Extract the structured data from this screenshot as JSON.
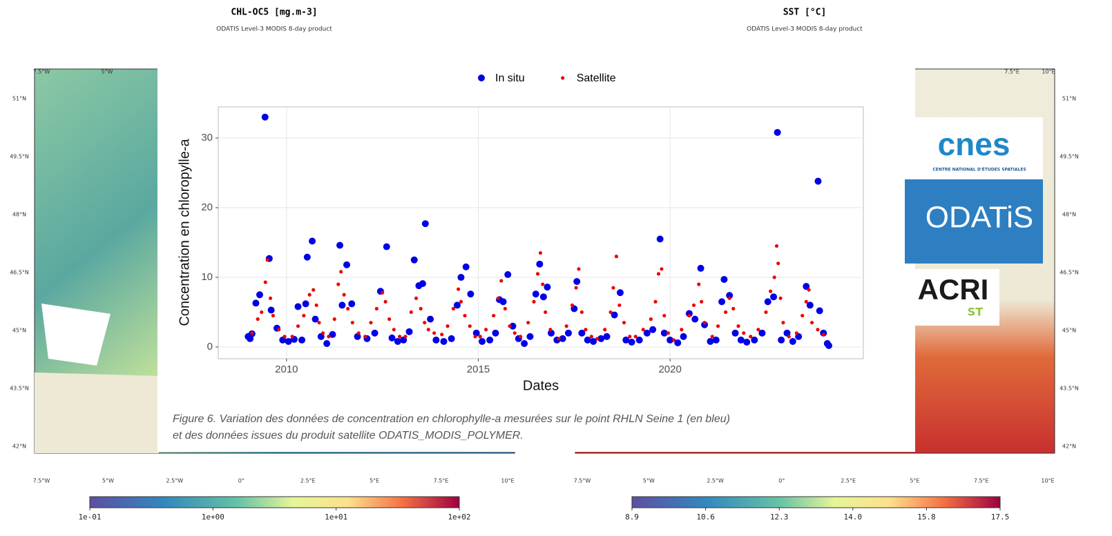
{
  "maps": [
    {
      "title": "CHL-OC5 [mg.m-3]",
      "subtitle": "ODATIS Level-3 MODIS 8-day product",
      "top_labels": [
        "7.5°W",
        "5°W"
      ],
      "lat_labels": [
        "51°N",
        "49.5°N",
        "48°N",
        "46.5°N",
        "45°N",
        "43.5°N",
        "42°N"
      ],
      "lon_labels": [
        "7.5°W",
        "5°W",
        "2.5°W",
        "0°",
        "2.5°E",
        "5°E",
        "7.5°E",
        "10°E"
      ],
      "colorbar_ticks": [
        "1e-01",
        "1e+00",
        "1e+01",
        "1e+02"
      ]
    },
    {
      "title": "SST [°C]",
      "subtitle": "ODATIS Level-3 MODIS 8-day product",
      "top_labels": [
        "7.5°E",
        "10°E"
      ],
      "lat_labels": [
        "51°N",
        "49.5°N",
        "48°N",
        "46.5°N",
        "45°N",
        "43.5°N",
        "42°N"
      ],
      "lon_labels": [
        "7.5°W",
        "5°W",
        "2.5°W",
        "0°",
        "2.5°E",
        "5°E",
        "7.5°E",
        "10°E"
      ],
      "colorbar_ticks": [
        "8.9",
        "10.6",
        "12.3",
        "14.0",
        "15.8",
        "17.5"
      ]
    }
  ],
  "logos": {
    "cnes": "cnes",
    "cnes_sub": "CENTRE NATIONAL D'ÉTUDES SPATIALES",
    "odatis": "ODATiS",
    "acri": "ACRI",
    "acri_sub": "ST"
  },
  "caption": [
    "Figure 6. Variation des données de concentration en chlorophylle-a mesurées sur le point RHLN Seine 1 (en bleu)",
    "et des données issues du produit satellite ODATIS_MODIS_POLYMER."
  ],
  "chart_data": {
    "type": "scatter",
    "x_label": "Dates",
    "y_label": "Concentration en chloropylle-a",
    "xlim": [
      2008.22,
      2025.04
    ],
    "ylim": [
      -1.68,
      34.46
    ],
    "xticks": [
      2010,
      2015,
      2020
    ],
    "yticks": [
      0,
      10,
      20,
      30
    ],
    "grid": true,
    "legend": "top",
    "series": [
      {
        "name": "In situ",
        "color": "#0000e6",
        "x": [
          2009.0,
          2009.05,
          2009.1,
          2009.2,
          2009.3,
          2009.44,
          2009.55,
          2009.6,
          2009.75,
          2009.9,
          2010.05,
          2010.2,
          2010.3,
          2010.4,
          2010.5,
          2010.54,
          2010.67,
          2010.75,
          2010.9,
          2011.05,
          2011.2,
          2011.39,
          2011.45,
          2011.57,
          2011.7,
          2011.85,
          2012.1,
          2012.3,
          2012.45,
          2012.61,
          2012.75,
          2012.9,
          2013.05,
          2013.2,
          2013.33,
          2013.45,
          2013.55,
          2013.62,
          2013.75,
          2013.9,
          2014.1,
          2014.3,
          2014.45,
          2014.55,
          2014.68,
          2014.8,
          2014.95,
          2015.1,
          2015.3,
          2015.45,
          2015.55,
          2015.65,
          2015.77,
          2015.9,
          2016.05,
          2016.2,
          2016.35,
          2016.5,
          2016.6,
          2016.7,
          2016.8,
          2016.9,
          2017.05,
          2017.2,
          2017.35,
          2017.5,
          2017.57,
          2017.7,
          2017.85,
          2018.0,
          2018.2,
          2018.35,
          2018.55,
          2018.7,
          2018.85,
          2019.0,
          2019.2,
          2019.4,
          2019.55,
          2019.74,
          2019.85,
          2020.0,
          2020.2,
          2020.35,
          2020.5,
          2020.65,
          2020.8,
          2020.9,
          2021.05,
          2021.2,
          2021.35,
          2021.41,
          2021.55,
          2021.7,
          2021.85,
          2022.0,
          2022.2,
          2022.4,
          2022.55,
          2022.7,
          2022.8,
          2022.9,
          2023.05,
          2023.2,
          2023.35,
          2023.55,
          2023.65,
          2023.86,
          2023.9,
          2024.0,
          2024.1,
          2024.14
        ],
        "values": [
          1.5,
          1.2,
          1.9,
          6.3,
          7.5,
          33,
          12.7,
          5.3,
          2.7,
          1.0,
          0.8,
          1.1,
          5.8,
          1.0,
          6.2,
          12.9,
          15.2,
          4.0,
          1.5,
          0.5,
          1.8,
          14.6,
          6.0,
          11.8,
          6.2,
          1.5,
          1.2,
          2.0,
          8.0,
          14.4,
          1.3,
          0.8,
          1.0,
          2.2,
          12.5,
          8.8,
          9.1,
          17.7,
          4.0,
          1.0,
          0.8,
          1.2,
          6.0,
          10.0,
          11.5,
          7.6,
          2.0,
          0.8,
          1.0,
          2.0,
          6.8,
          6.5,
          10.4,
          3.0,
          1.2,
          0.5,
          1.5,
          7.6,
          11.9,
          7.2,
          8.6,
          2.0,
          1.0,
          1.2,
          2.0,
          5.5,
          9.4,
          2.0,
          1.0,
          0.8,
          1.2,
          1.5,
          4.6,
          7.8,
          1.0,
          0.7,
          1.0,
          2.0,
          2.5,
          15.5,
          2.0,
          1.0,
          0.6,
          1.5,
          4.8,
          4.0,
          11.3,
          3.2,
          0.8,
          1.0,
          6.5,
          9.7,
          7.4,
          2.0,
          1.0,
          0.7,
          1.0,
          2.0,
          6.5,
          7.2,
          30.8,
          1.0,
          2.0,
          0.8,
          1.5,
          8.7,
          6.0,
          23.8,
          5.2,
          2.0,
          0.5,
          0.2
        ]
      },
      {
        "name": "Satellite",
        "color": "#ee0000",
        "x": [
          2009.1,
          2009.25,
          2009.35,
          2009.45,
          2009.5,
          2009.58,
          2009.65,
          2009.8,
          2009.95,
          2010.15,
          2010.3,
          2010.45,
          2010.6,
          2010.7,
          2010.78,
          2010.85,
          2010.95,
          2011.1,
          2011.25,
          2011.35,
          2011.42,
          2011.5,
          2011.6,
          2011.72,
          2011.88,
          2012.05,
          2012.2,
          2012.35,
          2012.5,
          2012.58,
          2012.68,
          2012.8,
          2012.95,
          2013.1,
          2013.25,
          2013.38,
          2013.5,
          2013.6,
          2013.7,
          2013.85,
          2014.05,
          2014.2,
          2014.35,
          2014.48,
          2014.55,
          2014.65,
          2014.78,
          2014.92,
          2015.05,
          2015.2,
          2015.4,
          2015.52,
          2015.6,
          2015.7,
          2015.82,
          2015.95,
          2016.1,
          2016.3,
          2016.45,
          2016.55,
          2016.62,
          2016.68,
          2016.75,
          2016.88,
          2017.1,
          2017.3,
          2017.45,
          2017.55,
          2017.62,
          2017.7,
          2017.8,
          2017.95,
          2018.1,
          2018.3,
          2018.45,
          2018.52,
          2018.6,
          2018.68,
          2018.8,
          2018.95,
          2019.1,
          2019.3,
          2019.5,
          2019.62,
          2019.7,
          2019.78,
          2019.85,
          2019.95,
          2020.1,
          2020.3,
          2020.5,
          2020.62,
          2020.75,
          2020.82,
          2020.9,
          2021.1,
          2021.25,
          2021.45,
          2021.55,
          2021.65,
          2021.78,
          2021.92,
          2022.1,
          2022.3,
          2022.5,
          2022.62,
          2022.72,
          2022.78,
          2022.82,
          2022.88,
          2022.95,
          2023.1,
          2023.3,
          2023.45,
          2023.55,
          2023.62,
          2023.7,
          2023.85,
          2024.0
        ],
        "values": [
          2.0,
          4.0,
          5.0,
          9.3,
          12.5,
          7.0,
          4.5,
          2.5,
          1.5,
          1.5,
          3.0,
          4.5,
          7.5,
          8.2,
          6.0,
          3.5,
          2.0,
          1.5,
          4.0,
          9.0,
          10.8,
          7.5,
          5.5,
          3.5,
          2.0,
          1.5,
          3.5,
          5.5,
          7.8,
          6.5,
          4.0,
          2.5,
          1.5,
          1.5,
          5.0,
          7.0,
          5.5,
          3.5,
          2.5,
          2.0,
          1.8,
          3.0,
          5.5,
          8.3,
          6.5,
          4.5,
          3.0,
          1.5,
          1.5,
          2.5,
          4.5,
          7.0,
          9.5,
          5.5,
          3.0,
          2.0,
          1.5,
          3.5,
          6.5,
          10.5,
          13.5,
          9.0,
          5.0,
          2.5,
          1.2,
          3.0,
          6.0,
          8.5,
          11.2,
          5.0,
          2.5,
          1.5,
          1.2,
          2.5,
          5.0,
          8.5,
          13.0,
          6.0,
          3.5,
          1.5,
          1.5,
          2.5,
          4.0,
          6.5,
          10.5,
          11.2,
          4.5,
          2.0,
          1.0,
          2.5,
          4.5,
          6.0,
          9.0,
          6.5,
          3.5,
          1.5,
          3.0,
          5.0,
          7.0,
          5.5,
          3.0,
          2.0,
          1.5,
          2.5,
          5.0,
          8.0,
          10.0,
          14.5,
          12.0,
          7.0,
          3.5,
          1.5,
          2.0,
          4.5,
          6.5,
          8.2,
          3.5,
          2.5,
          1.8
        ]
      }
    ]
  }
}
